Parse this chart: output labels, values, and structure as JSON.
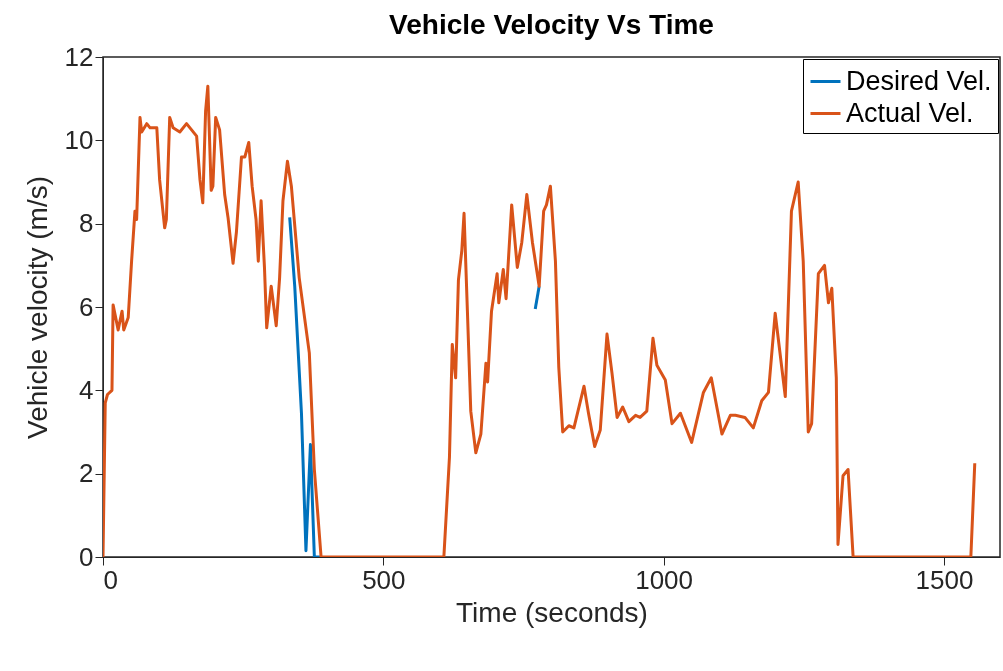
{
  "chart_data": {
    "type": "line",
    "title": "Vehicle Velocity Vs Time",
    "xlabel": "Time (seconds)",
    "ylabel": "Vehicle velocity (m/s)",
    "xlim": [
      0,
      1600
    ],
    "xticks": [
      0,
      500,
      1000,
      1500
    ],
    "tick_labels": "xy",
    "ylim": [
      0,
      12
    ],
    "yticks": [
      0,
      2,
      4,
      6,
      8,
      10,
      12
    ],
    "grid": false,
    "legend": "top right",
    "line_style": "solid",
    "marker": "none",
    "series": [
      {
        "name": "Desired Vel.",
        "color": "#0072bd",
        "x": [
          333,
          342,
          354,
          362,
          370,
          377,
          389,
          560,
          771,
          778
        ],
        "values": [
          8.15,
          6.5,
          3.45,
          0.15,
          2.7,
          0,
          0,
          null,
          5.95,
          6.5
        ]
      },
      {
        "name": "Actual Vel.",
        "color": "#d95319",
        "x": [
          0,
          4,
          8,
          16,
          18,
          27,
          34,
          37,
          45,
          51,
          57,
          60,
          66,
          69,
          78,
          84,
          96,
          101,
          110,
          113,
          119,
          125,
          137,
          149,
          158,
          167,
          173,
          178,
          183,
          187,
          193,
          196,
          201,
          208,
          217,
          223,
          232,
          238,
          247,
          253,
          260,
          266,
          273,
          277,
          282,
          288,
          292,
          300,
          309,
          315,
          321,
          329,
          336,
          350,
          368,
          377,
          389,
          608,
          618,
          623,
          629,
          634,
          640,
          644,
          650,
          656,
          665,
          674,
          683,
          686,
          693,
          703,
          706,
          714,
          719,
          729,
          739,
          747,
          756,
          766,
          778,
          786,
          791,
          798,
          807,
          813,
          820,
          831,
          840,
          858,
          866,
          877,
          887,
          899,
          908,
          917,
          927,
          938,
          950,
          958,
          970,
          981,
          988,
          1003,
          1015,
          1030,
          1050,
          1071,
          1085,
          1104,
          1119,
          1128,
          1145,
          1160,
          1175,
          1187,
          1199,
          1217,
          1228,
          1240,
          1249,
          1258,
          1264,
          1276,
          1287,
          1294,
          1300,
          1308,
          1311,
          1320,
          1329,
          1338,
          1548,
          1555
        ],
        "values": [
          0,
          3.7,
          3.9,
          4.0,
          6.05,
          5.45,
          5.9,
          5.45,
          5.75,
          7.1,
          8.3,
          8.1,
          10.55,
          10.2,
          10.4,
          10.3,
          10.3,
          9.05,
          7.9,
          8.1,
          10.55,
          10.3,
          10.2,
          10.4,
          10.25,
          10.1,
          9.05,
          8.5,
          10.7,
          11.3,
          8.8,
          8.9,
          10.55,
          10.25,
          8.7,
          8.15,
          7.05,
          7.8,
          9.6,
          9.6,
          9.95,
          8.9,
          8.1,
          7.1,
          8.55,
          6.95,
          5.5,
          6.5,
          5.55,
          6.7,
          8.55,
          9.5,
          8.9,
          6.7,
          4.9,
          2.1,
          0,
          0,
          2.4,
          5.1,
          4.3,
          6.65,
          7.35,
          8.25,
          5.9,
          3.5,
          2.5,
          2.95,
          4.65,
          4.2,
          5.9,
          6.8,
          6.1,
          6.9,
          6.2,
          8.45,
          6.95,
          7.55,
          8.7,
          7.55,
          6.5,
          8.3,
          8.45,
          8.9,
          7.1,
          4.55,
          3.0,
          3.15,
          3.1,
          4.1,
          3.45,
          2.65,
          3.05,
          5.35,
          4.4,
          3.35,
          3.6,
          3.25,
          3.4,
          3.35,
          3.5,
          5.25,
          4.6,
          4.25,
          3.2,
          3.45,
          2.75,
          3.95,
          4.3,
          2.95,
          3.4,
          3.4,
          3.35,
          3.1,
          3.75,
          3.95,
          5.85,
          3.85,
          8.3,
          9.0,
          7.1,
          3.0,
          3.2,
          6.8,
          7.0,
          6.1,
          6.45,
          4.3,
          0.3,
          1.95,
          2.1,
          0,
          0,
          2.25
        ]
      }
    ]
  }
}
